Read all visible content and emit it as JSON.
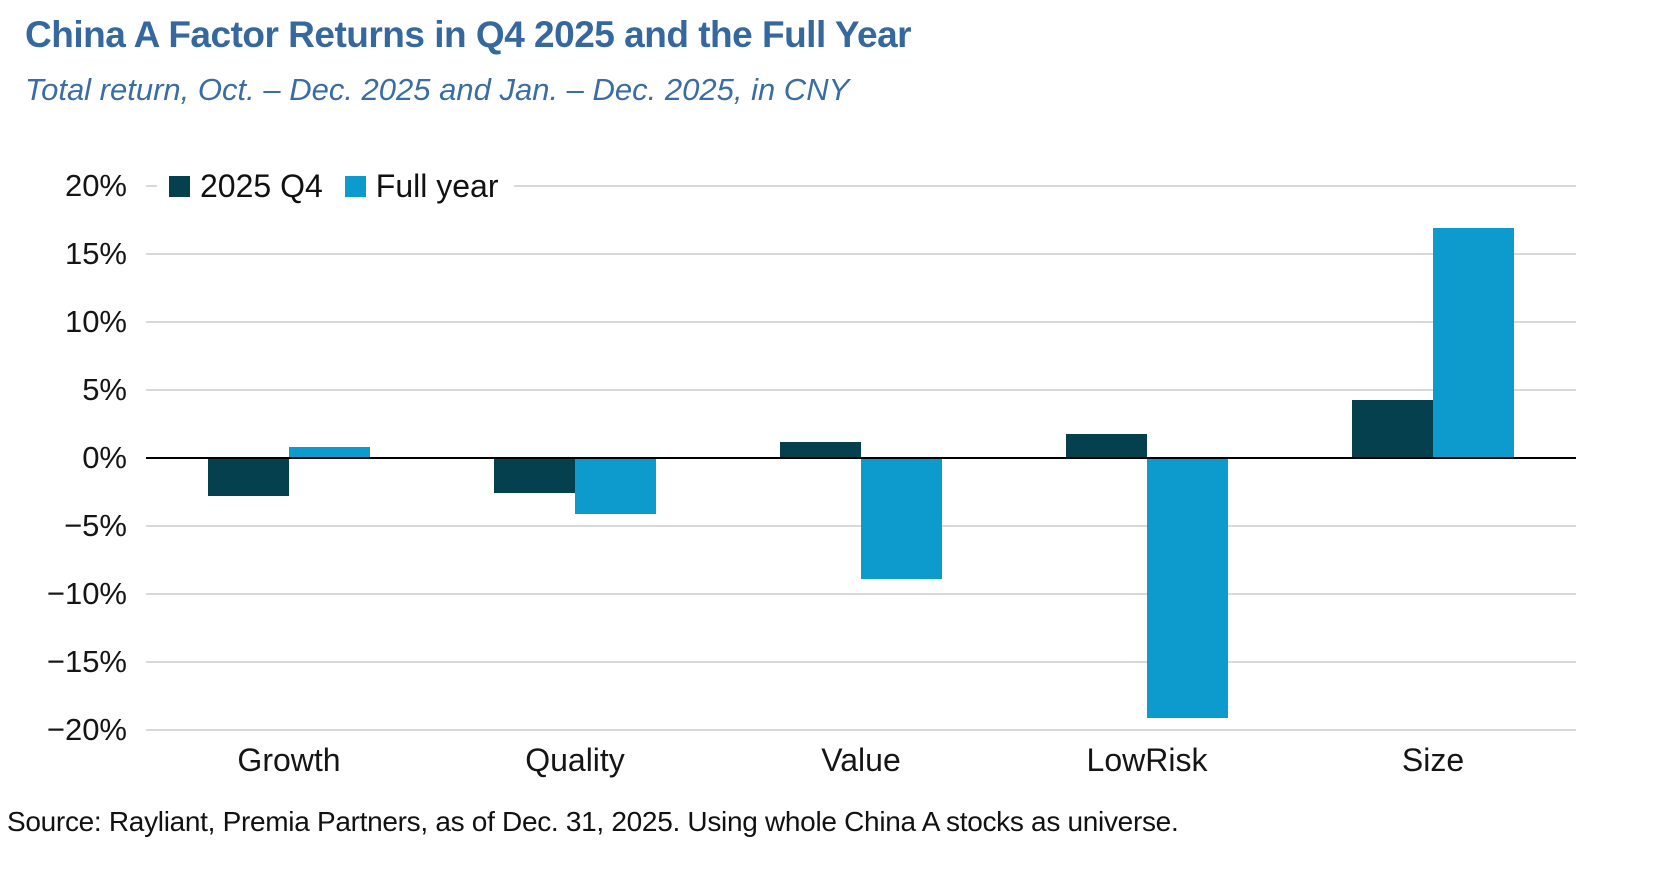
{
  "header": {
    "title": "China A Factor Returns in Q4 2025 and the Full Year",
    "subtitle": "Total return, Oct. – Dec. 2025 and Jan. – Dec. 2025, in CNY"
  },
  "footer": {
    "source": "Source: Rayliant, Premia Partners, as of Dec. 31, 2025. Using whole China A stocks as universe."
  },
  "colors": {
    "title_blue": "#35689f",
    "subtitle_blue": "#3a6da4",
    "q4_dark": "#05404f",
    "full_year_blue": "#0d9bce",
    "gridline_gray": "#d9d9d9",
    "axis_black": "#000000"
  },
  "chart_data": {
    "type": "bar",
    "title": "China A Factor Returns in Q4 2025 and the Full Year",
    "subtitle": "Total return, Oct. – Dec. 2025 and Jan. – Dec. 2025, in CNY",
    "xlabel": "",
    "ylabel": "",
    "categories": [
      "Growth",
      "Quality",
      "Value",
      "LowRisk",
      "Size"
    ],
    "series": [
      {
        "name": "2025 Q4",
        "color": "#05404f",
        "values": [
          -2.8,
          -2.6,
          1.2,
          1.8,
          4.3
        ]
      },
      {
        "name": "Full year",
        "color": "#0d9bce",
        "values": [
          0.8,
          -4.1,
          -8.9,
          -19.1,
          16.9
        ]
      }
    ],
    "ylim": [
      -20,
      20
    ],
    "yticks": [
      {
        "value": 20,
        "label": "20%"
      },
      {
        "value": 15,
        "label": "15%"
      },
      {
        "value": 10,
        "label": "10%"
      },
      {
        "value": 5,
        "label": "5%"
      },
      {
        "value": 0,
        "label": "0%"
      },
      {
        "value": -5,
        "label": "−5%"
      },
      {
        "value": -10,
        "label": "−10%"
      },
      {
        "value": -15,
        "label": "−15%"
      },
      {
        "value": -20,
        "label": "−20%"
      }
    ],
    "grid": true,
    "legend_position": "top-left"
  }
}
